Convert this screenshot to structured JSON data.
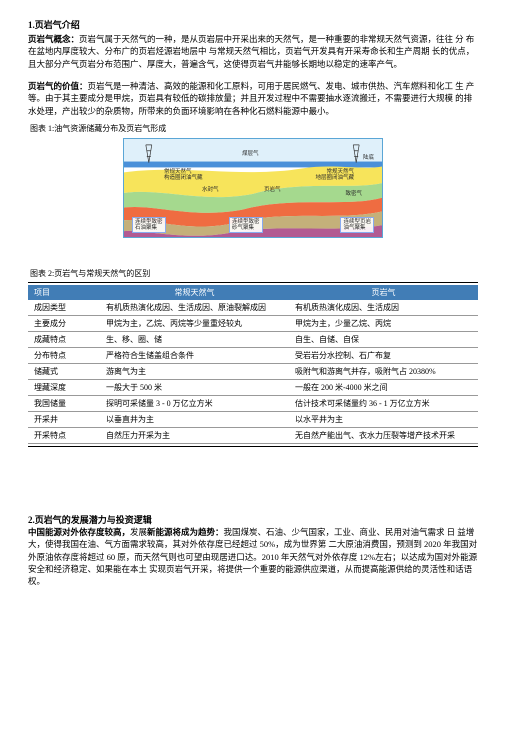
{
  "header": {
    "title": "1.页岩气介绍"
  },
  "para1": {
    "lead": "页岩气概念：",
    "text": "页岩气属于天然气的一种，是从页岩层中开采出来的天然气，是一种重要的非常规天然气资源，往往 分 布在盆地内厚度较大、分布广的页岩烃源岩地层中 与常规天然气相比，页岩气开发具有开采寿命长和生产周期 长的优点，且大部分产气页岩分布范围广、厚度大，普遍含气，这使得页岩气井能够长期地以稳定的速率产气。"
  },
  "para2": {
    "lead": "页岩气的价值：",
    "text": "页岩气是一种清洁、高效的能源和化工原料，可用于居民燃气、发电、城市供热、汽车燃料和化工 生 产等。由于其主要成分是甲烷，页岩具有较低的碳排放量；并且开发过程中不需要抽水逐流搬迁，不需要进行大规模 的排 水处理，产出较少的杂质物，所带来的负面环境影响在各种化石燃料能源中最小。"
  },
  "fig1": {
    "caption": "图表 1:油气资源储藏分布及页岩气形成"
  },
  "chart1": {
    "labels": {
      "top_mid": "煤层气",
      "top_right": "陆底",
      "left_top": "常规天然气\n构造圈闭油气藏",
      "right_top": "常规天然气\n地层圈闭油气藏",
      "mid_left": "水封气",
      "mid_right": "页岩气",
      "right_mid": "致密气",
      "bot_left": "连续型致密\n石油聚集",
      "bot_mid": "连续型致密\n砂气聚集",
      "bot_right": "连续型页岩\n油气聚集"
    },
    "colors": {
      "sky": "#dff0fa",
      "water": "#4a90d9",
      "l1": "#f7e45b",
      "l2": "#a5d98e",
      "l3": "#ef6c41",
      "l4": "#c4b07a",
      "l5": "#b25a92",
      "tower": "#333333"
    }
  },
  "fig2": {
    "caption": "图表 2:页岩气与常规天然气的区别"
  },
  "table": {
    "headers": [
      "项目",
      "常规天然气",
      "页岩气"
    ],
    "rows": [
      [
        "成因类型",
        "有机质热演化成因、生活成因、原油裂解成因",
        "有机质热演化成因、生活成因"
      ],
      [
        "主要成分",
        "甲烷为主，乙烷、丙烷等少量重烃较丸",
        "甲烷为主，少量乙烷、丙烷"
      ],
      [
        "成藏特点",
        "生、移、圈、储",
        "自生、自储、自保"
      ],
      [
        "分布特点",
        "严格符合生储盖组合条件",
        "受岩岩分水控制、石广布复"
      ],
      [
        "储藏式",
        "游离气为主",
        "吸附气和游离气并存，吸附气占 20380%"
      ],
      [
        "埋藏深度",
        "一般大于 500 米",
        "一般在 200 米-4000 米之间"
      ],
      [
        "我国储量",
        "探明可采储量 3 - 0 万亿立方米",
        "估计技术可采储量约 36 - 1 万亿立方米"
      ],
      [
        "开采井",
        "以垂直井为主",
        "以水平井为主"
      ],
      [
        "开采特点",
        "自然压力开采为主",
        "无自然产能出气、衣水力压裂等增产技术开采"
      ]
    ]
  },
  "sec2": {
    "h2": "2.页岩气的发展潜力与投资逻辑",
    "h3_bold1": "中国能源对外依存度较高，",
    "h3_plain1": "发展",
    "h3_bold2": "新能源将成为趋势：",
    "h3_tail": "我国煤炭、石油、少气国家，工业、商业、民用对油气需求 日 益增大，使得我国在油、气方面需求较高，其对外依存度已经超过 50%，成为世界第 二大原油消费国，预测到 2020 年我国对外原油依存度将超过 60 原，而天然气则也可望由现居进口达。2010 年天然气对外依存度 12%左右；以达成为国对外能源 安全和经济稳定、如果能在本土 实现页岩气开采，将提供一个重要的能源供应渠道，从而提高能源供给的灵活性和话语权。"
  }
}
